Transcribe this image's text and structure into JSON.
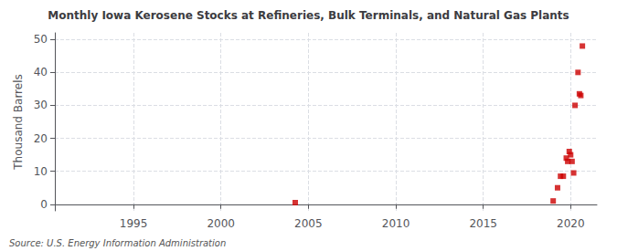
{
  "chart_data": {
    "type": "scatter",
    "title": "Monthly Iowa Kerosene Stocks at Refineries, Bulk Terminals, and Natural Gas Plants",
    "ylabel": "Thousand Barrels",
    "annotations": [
      "Source: U.S. Energy Information Administration"
    ],
    "x": [
      2004.25,
      2019.0,
      2019.25,
      2019.42,
      2019.58,
      2019.75,
      2019.83,
      2019.92,
      2020.0,
      2020.08,
      2020.17,
      2020.25,
      2020.42,
      2020.5,
      2020.58,
      2020.67
    ],
    "values": [
      0.5,
      1.0,
      5.0,
      8.5,
      8.5,
      14.0,
      13.0,
      16.0,
      15.0,
      13.0,
      9.5,
      30.0,
      40.0,
      33.5,
      33.0,
      48.0
    ],
    "color": "#cc0000",
    "marker": "square",
    "xlim": [
      1990.5,
      2021.5
    ],
    "xticks": [
      1995,
      2000,
      2005,
      2010,
      2015,
      2020
    ],
    "ylim": [
      -2,
      52
    ],
    "yticks": [
      0,
      10,
      20,
      30,
      40,
      50
    ],
    "grid": true
  }
}
